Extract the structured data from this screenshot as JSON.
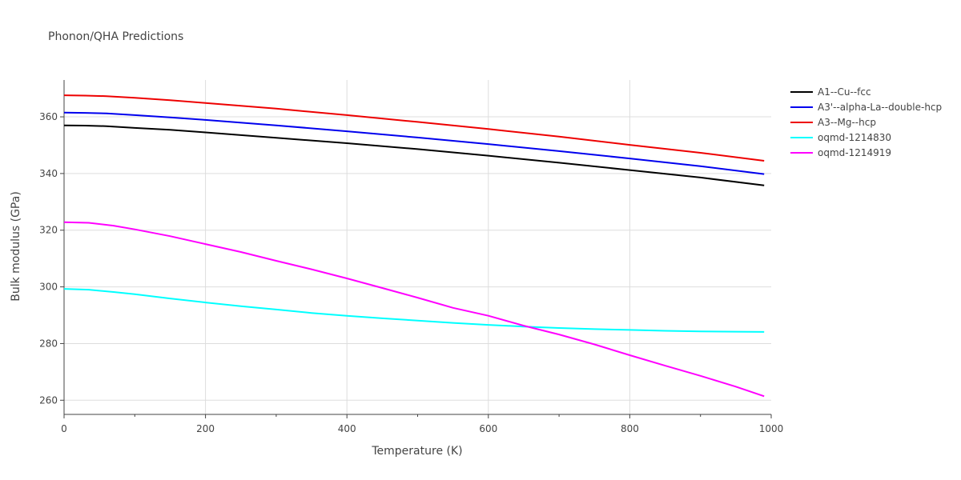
{
  "chart_data": {
    "type": "line",
    "title": "Phonon/QHA Predictions",
    "xlabel": "Temperature (K)",
    "ylabel": "Bulk modulus (GPa)",
    "xlim": [
      0,
      1000
    ],
    "ylim": [
      255,
      373
    ],
    "x_ticks": [
      0,
      200,
      400,
      600,
      800,
      1000
    ],
    "y_ticks": [
      260,
      280,
      300,
      320,
      340,
      360
    ],
    "x_minor_ticks": [
      100,
      300,
      500,
      700,
      900
    ],
    "grid": true,
    "legend_position": "top-right",
    "series": [
      {
        "name": "A1--Cu--fcc",
        "color": "#000000",
        "x": [
          0,
          30,
          60,
          100,
          150,
          200,
          300,
          400,
          500,
          600,
          700,
          800,
          900,
          990
        ],
        "y": [
          357.0,
          356.9,
          356.7,
          356.1,
          355.4,
          354.5,
          352.6,
          350.7,
          348.6,
          346.3,
          343.8,
          341.2,
          338.6,
          335.8
        ]
      },
      {
        "name": "A3'--alpha-La--double-hcp",
        "color": "#0000ee",
        "x": [
          0,
          30,
          60,
          100,
          150,
          200,
          300,
          400,
          500,
          600,
          700,
          800,
          900,
          990
        ],
        "y": [
          361.5,
          361.4,
          361.2,
          360.6,
          359.8,
          358.9,
          357.0,
          354.9,
          352.7,
          350.4,
          347.9,
          345.3,
          342.6,
          339.8
        ]
      },
      {
        "name": "A3--Mg--hcp",
        "color": "#ee0000",
        "x": [
          0,
          30,
          60,
          100,
          150,
          200,
          300,
          400,
          500,
          600,
          700,
          800,
          900,
          990
        ],
        "y": [
          367.6,
          367.5,
          367.3,
          366.7,
          365.9,
          364.9,
          362.9,
          360.6,
          358.2,
          355.7,
          353.0,
          350.1,
          347.3,
          344.5
        ]
      },
      {
        "name": "oqmd-1214830",
        "color": "#00ffff",
        "x": [
          0,
          35,
          70,
          100,
          150,
          200,
          250,
          300,
          350,
          400,
          450,
          500,
          550,
          600,
          650,
          700,
          750,
          800,
          850,
          900,
          950,
          990
        ],
        "y": [
          299.3,
          299.0,
          298.2,
          297.4,
          295.9,
          294.5,
          293.2,
          292.0,
          290.8,
          289.8,
          288.9,
          288.1,
          287.3,
          286.6,
          286.0,
          285.5,
          285.1,
          284.8,
          284.5,
          284.3,
          284.2,
          284.1
        ]
      },
      {
        "name": "oqmd-1214919",
        "color": "#ff00ff",
        "x": [
          0,
          35,
          70,
          100,
          150,
          200,
          250,
          300,
          350,
          400,
          450,
          500,
          550,
          600,
          650,
          700,
          750,
          800,
          850,
          900,
          950,
          990
        ],
        "y": [
          322.8,
          322.6,
          321.6,
          320.3,
          317.9,
          315.1,
          312.3,
          309.2,
          306.2,
          303.0,
          299.6,
          296.2,
          292.6,
          289.8,
          286.3,
          283.2,
          279.7,
          275.9,
          272.2,
          268.6,
          264.8,
          261.4
        ]
      }
    ]
  }
}
